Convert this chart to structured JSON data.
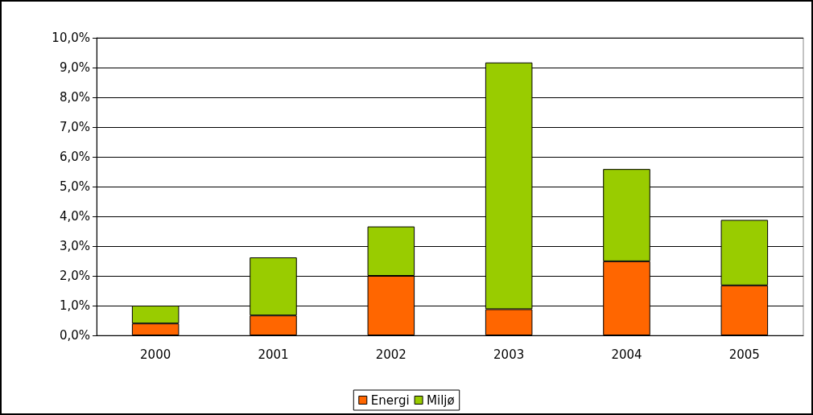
{
  "chart_data": {
    "type": "bar",
    "stacked": true,
    "categories": [
      "2000",
      "2001",
      "2002",
      "2003",
      "2004",
      "2005"
    ],
    "series": [
      {
        "name": "Energi",
        "color": "#ff6600",
        "values": [
          0.4,
          0.67,
          2.0,
          0.88,
          2.49,
          1.68
        ]
      },
      {
        "name": "Miljø",
        "color": "#99cc00",
        "values": [
          0.6,
          1.95,
          1.66,
          8.29,
          3.1,
          2.2
        ]
      }
    ],
    "ylim": [
      0,
      10
    ],
    "yticks": [
      {
        "value": 0,
        "label": "0,0%"
      },
      {
        "value": 1,
        "label": "1,0%"
      },
      {
        "value": 2,
        "label": "2,0%"
      },
      {
        "value": 3,
        "label": "3,0%"
      },
      {
        "value": 4,
        "label": "4,0%"
      },
      {
        "value": 5,
        "label": "5,0%"
      },
      {
        "value": 6,
        "label": "6,0%"
      },
      {
        "value": 7,
        "label": "7,0%"
      },
      {
        "value": 8,
        "label": "8,0%"
      },
      {
        "value": 9,
        "label": "9,0%"
      },
      {
        "value": 10,
        "label": "10,0%"
      }
    ],
    "grid": "y",
    "legend": "bottom"
  }
}
